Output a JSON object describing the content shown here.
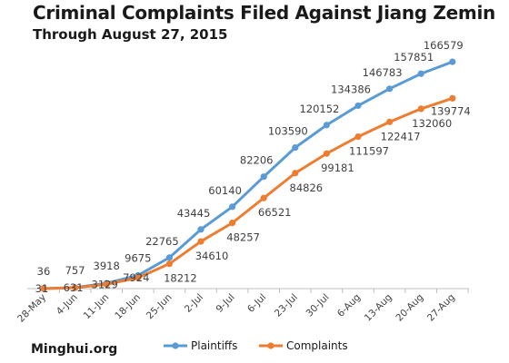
{
  "title": "Criminal Complaints Filed Against Jiang Zemin",
  "subtitle": "Through August 27, 2015",
  "source": "Minghui.org",
  "colors": {
    "plaintiffs": "#5b9bd5",
    "complaints": "#ed7d31",
    "axis": "#bfbfbf",
    "text": "#404040"
  },
  "chart_data": {
    "type": "line",
    "categories": [
      "28-May",
      "4-Jun",
      "11-Jun",
      "18-Jun",
      "25-Jun",
      "2-Jul",
      "9-Jul",
      "6-Jul",
      "23-Jul",
      "30-Jul",
      "6-Aug",
      "13-Aug",
      "20-Aug",
      "27-Aug"
    ],
    "series": [
      {
        "name": "Plaintiffs",
        "values": [
          36,
          757,
          3918,
          9675,
          22765,
          43445,
          60140,
          82206,
          103590,
          120152,
          134386,
          146783,
          157851,
          166579
        ]
      },
      {
        "name": "Complaints",
        "values": [
          31,
          631,
          3129,
          7924,
          18212,
          34610,
          48257,
          66521,
          84826,
          99181,
          111597,
          122417,
          132060,
          139774
        ]
      }
    ],
    "ylim": [
      0,
      180000
    ],
    "grid": false,
    "legend": "bottom"
  }
}
